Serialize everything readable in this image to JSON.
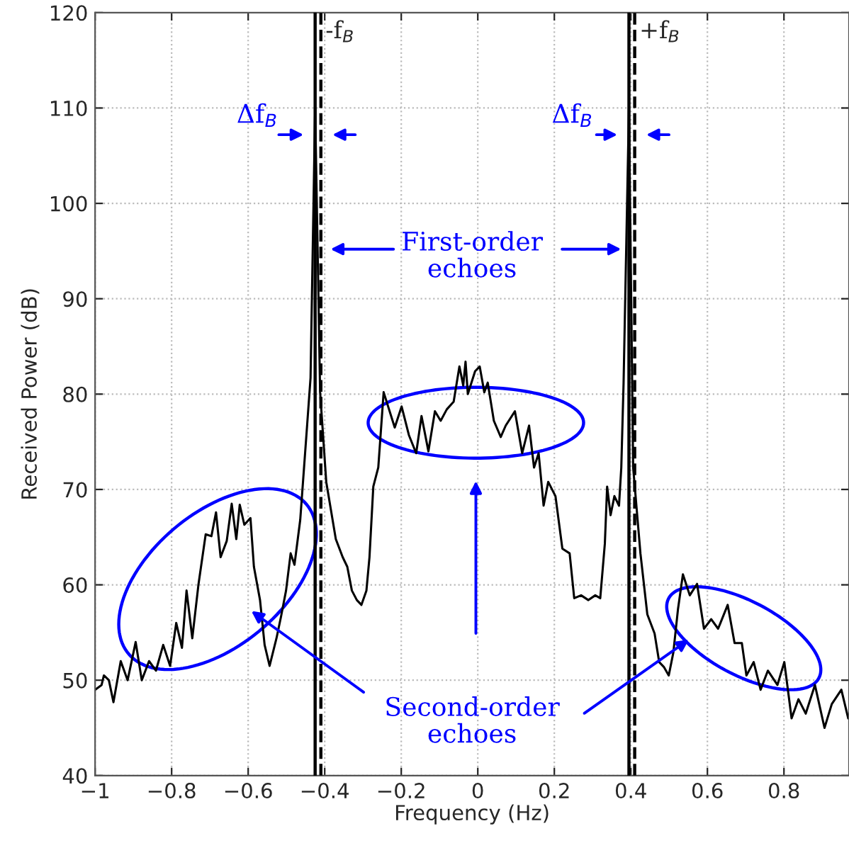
{
  "chart_data": {
    "type": "line",
    "xlabel": "Frequency (Hz)",
    "ylabel": "Received Power (dB)",
    "xlim": [
      -1,
      0.97
    ],
    "ylim": [
      40,
      120
    ],
    "xticks": [
      {
        "value": -1,
        "label": "−1"
      },
      {
        "value": -0.8,
        "label": "−0.8"
      },
      {
        "value": -0.6,
        "label": "−0.6"
      },
      {
        "value": -0.4,
        "label": "−0.4"
      },
      {
        "value": -0.2,
        "label": "−0.2"
      },
      0,
      0.2,
      0.4,
      0.6,
      0.8
    ],
    "yticks": [
      40,
      50,
      60,
      70,
      80,
      90,
      100,
      110,
      120
    ],
    "grid": true,
    "marker": "none",
    "line_style": "solid",
    "series": [
      {
        "color": "#000000",
        "x": [
          -1.0,
          -0.983,
          -0.977,
          -0.964,
          -0.952,
          -0.933,
          -0.915,
          -0.894,
          -0.878,
          -0.859,
          -0.841,
          -0.822,
          -0.804,
          -0.788,
          -0.773,
          -0.761,
          -0.746,
          -0.73,
          -0.711,
          -0.696,
          -0.684,
          -0.672,
          -0.656,
          -0.643,
          -0.631,
          -0.622,
          -0.61,
          -0.594,
          -0.585,
          -0.569,
          -0.557,
          -0.544,
          -0.526,
          -0.514,
          -0.501,
          -0.489,
          -0.479,
          -0.464,
          -0.446,
          -0.437,
          -0.425,
          -0.412,
          -0.396,
          -0.371,
          -0.353,
          -0.341,
          -0.329,
          -0.316,
          -0.304,
          -0.291,
          -0.283,
          -0.273,
          -0.26,
          -0.246,
          -0.217,
          -0.199,
          -0.18,
          -0.161,
          -0.147,
          -0.129,
          -0.112,
          -0.097,
          -0.081,
          -0.063,
          -0.048,
          -0.038,
          -0.032,
          -0.026,
          -0.007,
          0.005,
          0.017,
          0.026,
          0.042,
          0.06,
          0.073,
          0.097,
          0.116,
          0.134,
          0.147,
          0.159,
          0.172,
          0.184,
          0.203,
          0.221,
          0.24,
          0.252,
          0.27,
          0.289,
          0.307,
          0.32,
          0.332,
          0.338,
          0.347,
          0.357,
          0.369,
          0.375,
          0.381,
          0.395,
          0.406,
          0.425,
          0.443,
          0.462,
          0.474,
          0.486,
          0.499,
          0.511,
          0.523,
          0.536,
          0.554,
          0.573,
          0.591,
          0.61,
          0.628,
          0.653,
          0.671,
          0.69,
          0.702,
          0.721,
          0.739,
          0.758,
          0.783,
          0.801,
          0.82,
          0.838,
          0.857,
          0.881,
          0.906,
          0.925,
          0.95,
          0.968
        ],
        "values": [
          49,
          49.5,
          50.5,
          50,
          47.7,
          52,
          50,
          54,
          50,
          52,
          51,
          53.7,
          51.5,
          56,
          53.4,
          59.4,
          54.4,
          60,
          65.3,
          65.1,
          67.6,
          62.9,
          64.6,
          68.5,
          64.8,
          68.4,
          66.3,
          67,
          61.9,
          58.4,
          53.7,
          51.5,
          54.4,
          56.7,
          59.4,
          63.3,
          62.1,
          66.8,
          76.7,
          81.7,
          110,
          80.2,
          70.8,
          64.8,
          62.9,
          61.9,
          59.4,
          58.4,
          57.9,
          59.4,
          62.9,
          70.3,
          72.3,
          80.2,
          76.5,
          78.7,
          75.7,
          73.8,
          77.7,
          74,
          78.2,
          77.2,
          78.4,
          79.2,
          82.9,
          80.9,
          83.4,
          80,
          82.4,
          82.9,
          80.2,
          81.2,
          77.2,
          75.5,
          76.7,
          78.2,
          73.8,
          76.7,
          72.3,
          73.8,
          68.3,
          70.8,
          69.3,
          63.8,
          63.3,
          58.6,
          58.9,
          58.4,
          58.9,
          58.6,
          64.3,
          70.3,
          67.3,
          69.3,
          68.3,
          72.3,
          81.2,
          110,
          72.3,
          63.3,
          56.9,
          54.9,
          51.9,
          51.4,
          50.5,
          52.9,
          57.4,
          61.1,
          58.9,
          60.1,
          55.4,
          56.4,
          55.4,
          57.9,
          53.9,
          53.9,
          50.5,
          51.9,
          49,
          51,
          49.5,
          51.9,
          46,
          48,
          46.5,
          49.5,
          45,
          47.5,
          49,
          46
        ]
      }
    ],
    "ref_lines": [
      {
        "axis": "x",
        "value": -0.425,
        "color": "#000000",
        "line_style": "solid"
      },
      {
        "axis": "x",
        "value": -0.41,
        "label": "-f$_{B}$",
        "color": "#000000",
        "line_style": "dashed"
      },
      {
        "axis": "x",
        "value": 0.395,
        "color": "#000000",
        "line_style": "solid"
      },
      {
        "axis": "x",
        "value": 0.41,
        "label": "+f$_{B}$",
        "color": "#000000",
        "line_style": "dashed"
      }
    ],
    "annotations": [
      "Δf$_{B}$",
      "Δf$_{B}$",
      "First-order\nechoes",
      "Second-order\nechoes"
    ]
  }
}
